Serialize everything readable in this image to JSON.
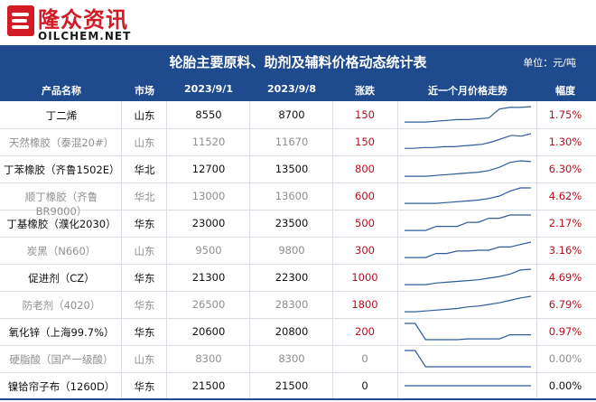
{
  "brand": {
    "cn": "隆众资讯",
    "en": "OILCHEM.NET"
  },
  "title": "轮胎主要原料、助剂及辅料价格动态统计表",
  "unit": "单位：元/吨",
  "headers": [
    "产品名称",
    "市场",
    "2023/9/1",
    "2023/9/8",
    "涨跌",
    "近一个月价格走势",
    "幅度"
  ],
  "rows": [
    {
      "name": "丁二烯",
      "market": "山东",
      "p1": "8550",
      "p2": "8700",
      "chg": "150",
      "pct": "1.75%",
      "trend": [
        0.05,
        0.05,
        0.05,
        0.1,
        0.15,
        0.2,
        0.2,
        0.25,
        0.3,
        0.85,
        0.95,
        0.95,
        1.0
      ]
    },
    {
      "name": "天然橡胶（泰混20#）",
      "market": "山东",
      "p1": "11520",
      "p2": "11670",
      "chg": "150",
      "pct": "1.30%",
      "trend": [
        0.1,
        0.1,
        0.15,
        0.15,
        0.2,
        0.2,
        0.25,
        0.3,
        0.35,
        0.5,
        0.7,
        0.9,
        0.85,
        1.0
      ]
    },
    {
      "name": "丁苯橡胶（齐鲁1502E）",
      "market": "华北",
      "p1": "12700",
      "p2": "13500",
      "chg": "800",
      "pct": "6.30%",
      "trend": [
        0.05,
        0.05,
        0.05,
        0.1,
        0.15,
        0.2,
        0.25,
        0.3,
        0.4,
        0.6,
        0.9,
        1.0,
        0.95
      ]
    },
    {
      "name": "顺丁橡胶（齐鲁BR9000）",
      "market": "华北",
      "p1": "13000",
      "p2": "13600",
      "chg": "600",
      "pct": "4.62%",
      "trend": [
        0.05,
        0.05,
        0.05,
        0.05,
        0.1,
        0.15,
        0.2,
        0.25,
        0.35,
        0.5,
        0.8,
        1.0,
        1.0
      ]
    },
    {
      "name": "丁基橡胶（濮化2030）",
      "market": "华东",
      "p1": "23000",
      "p2": "23500",
      "chg": "500",
      "pct": "2.17%",
      "trend": [
        0.05,
        0.05,
        0.05,
        0.3,
        0.3,
        0.3,
        0.55,
        0.55,
        0.8,
        0.8,
        1.0,
        1.0,
        1.0
      ]
    },
    {
      "name": "炭黑（N660）",
      "market": "山东",
      "p1": "9500",
      "p2": "9800",
      "chg": "300",
      "pct": "3.16%",
      "trend": [
        0.05,
        0.05,
        0.05,
        0.3,
        0.3,
        0.45,
        0.45,
        0.5,
        0.5,
        0.7,
        0.7,
        0.85,
        1.0
      ]
    },
    {
      "name": "促进剂（CZ）",
      "market": "华东",
      "p1": "21300",
      "p2": "22300",
      "chg": "1000",
      "pct": "4.69%",
      "trend": [
        0.05,
        0.05,
        0.05,
        0.15,
        0.2,
        0.25,
        0.3,
        0.35,
        0.45,
        0.55,
        0.7,
        0.95,
        1.0
      ]
    },
    {
      "name": "防老剂（4020）",
      "market": "华东",
      "p1": "26500",
      "p2": "28300",
      "chg": "1800",
      "pct": "6.79%",
      "trend": [
        0.05,
        0.05,
        0.1,
        0.15,
        0.2,
        0.25,
        0.35,
        0.4,
        0.5,
        0.6,
        0.75,
        0.9,
        1.0
      ]
    },
    {
      "name": "氧化锌（上海99.7%）",
      "market": "华东",
      "p1": "20600",
      "p2": "20800",
      "chg": "200",
      "pct": "0.97%",
      "trend": [
        1.0,
        1.0,
        0.0,
        0.0,
        0.0,
        0.0,
        0.05,
        0.05,
        0.05,
        0.05,
        0.3,
        0.3,
        0.3
      ]
    },
    {
      "name": "硬脂酸（国产一级酸）",
      "market": "山东",
      "p1": "8300",
      "p2": "8300",
      "chg": "0",
      "pct": "0.00%",
      "trend": [
        1.0,
        1.0,
        0.0,
        0.0,
        0.0,
        0.0,
        0.0,
        0.0,
        0.0,
        0.0,
        0.0,
        0.0,
        0.0
      ]
    },
    {
      "name": "镍铪帘子布（1260D）",
      "market": "华东",
      "p1": "21500",
      "p2": "21500",
      "chg": "0",
      "pct": "0.00%",
      "trend": [
        0.5,
        0.5,
        0.5,
        0.5,
        0.5,
        0.5,
        0.5,
        0.5,
        0.5,
        0.5,
        0.5,
        0.5,
        0.5
      ]
    }
  ],
  "colors": {
    "header_bg": "#1f4b8e",
    "brand_red": "#d21b26",
    "rise_red": "#b6101f",
    "trend_line": "#2f5b9a"
  }
}
